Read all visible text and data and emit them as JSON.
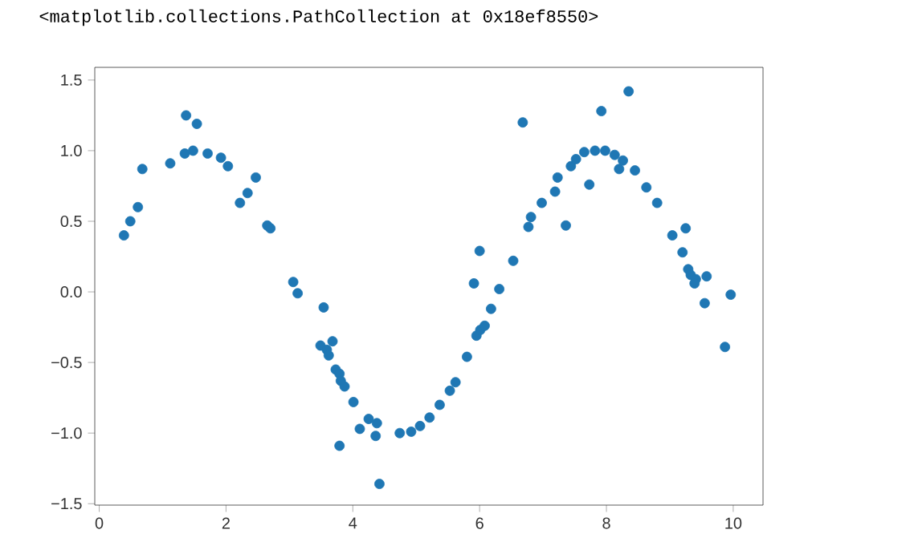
{
  "chart_data": {
    "type": "scatter",
    "annotations": [
      "<matplotlib.collections.PathCollection at 0x18ef8550>"
    ],
    "x": [
      0.39,
      0.49,
      0.61,
      0.68,
      1.12,
      1.37,
      1.35,
      1.48,
      1.54,
      1.71,
      1.92,
      2.03,
      2.22,
      2.34,
      2.47,
      2.65,
      2.7,
      3.06,
      3.13,
      3.54,
      3.49,
      3.59,
      3.68,
      3.62,
      3.73,
      3.79,
      3.81,
      3.87,
      4.01,
      3.79,
      4.11,
      4.25,
      4.38,
      4.36,
      4.42,
      4.74,
      4.92,
      5.06,
      5.21,
      5.37,
      5.53,
      5.62,
      5.8,
      5.91,
      6.0,
      5.95,
      6.01,
      6.08,
      6.18,
      6.31,
      6.53,
      6.68,
      6.77,
      6.81,
      6.98,
      7.19,
      7.23,
      7.36,
      7.44,
      7.52,
      7.65,
      7.73,
      7.82,
      7.92,
      7.98,
      8.13,
      8.2,
      8.26,
      8.35,
      8.45,
      8.63,
      8.8,
      9.04,
      9.25,
      9.2,
      9.29,
      9.33,
      9.41,
      9.58,
      9.39,
      9.55,
      9.87,
      9.96
    ],
    "values": [
      0.4,
      0.5,
      0.6,
      0.87,
      0.91,
      1.25,
      0.98,
      1.0,
      1.19,
      0.98,
      0.95,
      0.89,
      0.63,
      0.7,
      0.81,
      0.47,
      0.45,
      0.07,
      -0.01,
      -0.11,
      -0.38,
      -0.41,
      -0.35,
      -0.45,
      -0.55,
      -0.58,
      -0.63,
      -0.67,
      -0.78,
      -1.09,
      -0.97,
      -0.9,
      -0.93,
      -1.02,
      -1.36,
      -1.0,
      -0.99,
      -0.95,
      -0.89,
      -0.8,
      -0.7,
      -0.64,
      -0.46,
      0.06,
      0.29,
      -0.31,
      -0.27,
      -0.24,
      -0.12,
      0.02,
      0.22,
      1.2,
      0.46,
      0.53,
      0.63,
      0.71,
      0.81,
      0.47,
      0.89,
      0.94,
      0.99,
      0.76,
      1.0,
      1.28,
      1.0,
      0.97,
      0.87,
      0.93,
      1.42,
      0.86,
      0.74,
      0.63,
      0.4,
      0.45,
      0.28,
      0.16,
      0.12,
      0.09,
      0.11,
      0.06,
      -0.08,
      -0.39,
      -0.02
    ],
    "color": "#1f77b4",
    "grid": false,
    "xlim": [
      -0.07,
      10.47
    ],
    "ylim": [
      -1.51,
      1.59
    ],
    "xticks": [
      0,
      2,
      4,
      6,
      8,
      10
    ],
    "yticks": [
      {
        "value": -1.5,
        "label": "−1.5"
      },
      {
        "value": -1.0,
        "label": "−1.0"
      },
      {
        "value": -0.5,
        "label": "−0.5"
      },
      {
        "value": 0.0,
        "label": "0.0"
      },
      {
        "value": 0.5,
        "label": "0.5"
      },
      {
        "value": 1.0,
        "label": "1.0"
      },
      {
        "value": 1.5,
        "label": "1.5"
      }
    ]
  }
}
